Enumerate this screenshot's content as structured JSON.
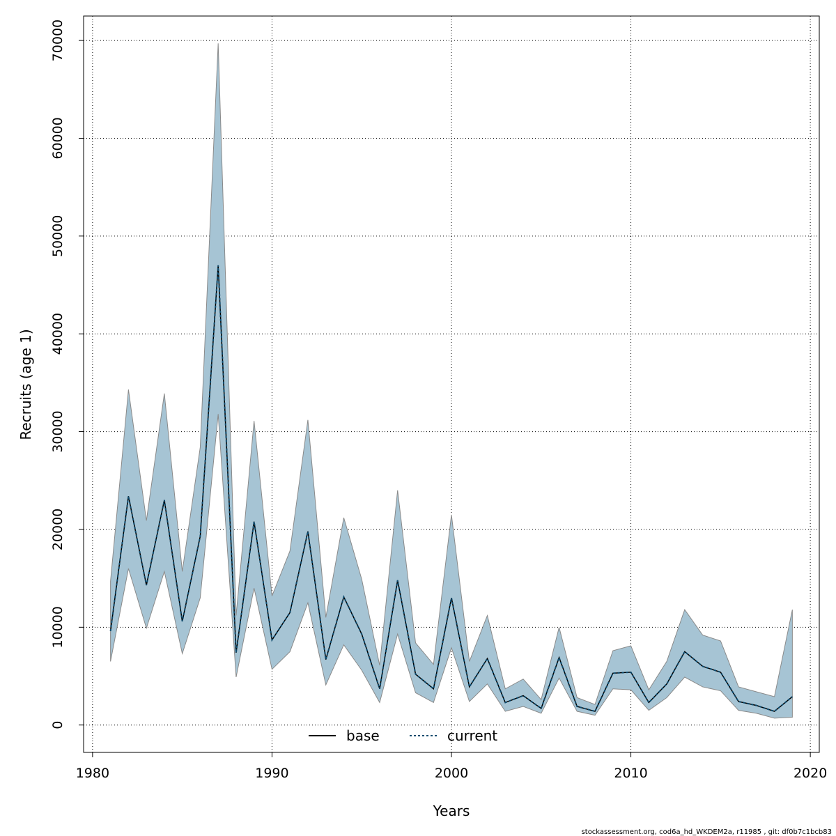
{
  "chart_data": {
    "type": "area",
    "xlabel": "Years",
    "ylabel": "Recruits (age 1)",
    "xlim": [
      1979.5,
      2020.5
    ],
    "ylim": [
      -2800,
      72500
    ],
    "x_ticks": [
      1980,
      1990,
      2000,
      2010,
      2020
    ],
    "y_ticks": [
      0,
      10000,
      20000,
      30000,
      40000,
      50000,
      60000,
      70000
    ],
    "grid": true,
    "legend_position": "bottom-center",
    "x": [
      1981,
      1982,
      1983,
      1984,
      1985,
      1986,
      1987,
      1988,
      1989,
      1990,
      1991,
      1992,
      1993,
      1994,
      1995,
      1996,
      1997,
      1998,
      1999,
      2000,
      2001,
      2002,
      2003,
      2004,
      2005,
      2006,
      2007,
      2008,
      2009,
      2010,
      2011,
      2012,
      2013,
      2014,
      2015,
      2016,
      2017,
      2018,
      2019
    ],
    "band": {
      "upper": [
        14700,
        34300,
        20900,
        33900,
        15700,
        28400,
        69700,
        11200,
        31100,
        13200,
        17800,
        31200,
        11000,
        21200,
        14900,
        6100,
        24000,
        8400,
        6200,
        21500,
        6500,
        11200,
        3700,
        4700,
        2600,
        10000,
        2800,
        2100,
        7600,
        8100,
        3600,
        6500,
        11800,
        9200,
        8600,
        3900,
        3400,
        2900,
        11800
      ],
      "lower": [
        6500,
        16000,
        9900,
        15700,
        7300,
        13000,
        31800,
        4900,
        14000,
        5700,
        7500,
        12500,
        4100,
        8200,
        5600,
        2300,
        9300,
        3300,
        2300,
        7900,
        2400,
        4200,
        1400,
        1900,
        1200,
        4800,
        1400,
        1000,
        3700,
        3600,
        1500,
        2800,
        4900,
        3900,
        3500,
        1500,
        1200,
        700,
        800
      ]
    },
    "series": [
      {
        "name": "base",
        "values": [
          9600,
          23400,
          14300,
          23000,
          10600,
          19300,
          47000,
          7400,
          20800,
          8700,
          11500,
          19800,
          6700,
          13100,
          9300,
          3700,
          14800,
          5200,
          3700,
          13000,
          3900,
          6800,
          2300,
          3000,
          1700,
          6900,
          1900,
          1400,
          5300,
          5400,
          2300,
          4200,
          7500,
          6000,
          5400,
          2400,
          2000,
          1400,
          2900
        ]
      },
      {
        "name": "current",
        "values": [
          9600,
          23400,
          14300,
          23000,
          10600,
          19300,
          47000,
          7400,
          20800,
          8700,
          11500,
          19800,
          6700,
          13100,
          9300,
          3700,
          14800,
          5200,
          3700,
          13000,
          3900,
          6800,
          2300,
          3000,
          1700,
          6900,
          1900,
          1400,
          5300,
          5400,
          2300,
          4200,
          7500,
          6000,
          5400,
          2400,
          2000,
          1400,
          2900
        ]
      }
    ],
    "colors": {
      "band_fill": "#a6c4d4",
      "band_stroke": "#8a8a8a",
      "base": "#000000",
      "current": "#0d4b6e",
      "grid": "#000000"
    }
  },
  "footer": "stockassessment.org, cod6a_hd_WKDEM2a, r11985 , git: df0b7c1bcb83"
}
